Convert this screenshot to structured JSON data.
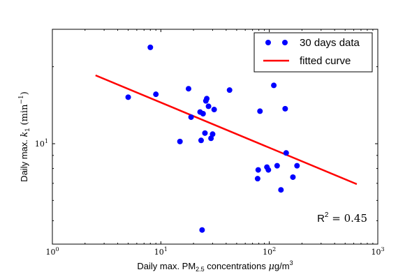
{
  "chart_data": {
    "type": "scatter",
    "x_scale": "log",
    "y_scale": "log",
    "xlim": [
      1,
      1000
    ],
    "ylim": [
      4.05,
      28.0
    ],
    "xticks": [
      {
        "value": 1,
        "base": "10",
        "exp": "0"
      },
      {
        "value": 10,
        "base": "10",
        "exp": "1"
      },
      {
        "value": 100,
        "base": "10",
        "exp": "2"
      },
      {
        "value": 1000,
        "base": "10",
        "exp": "3"
      }
    ],
    "yticks": [
      {
        "value": 10,
        "base": "10",
        "exp": "1"
      }
    ],
    "xlabel": {
      "pre": "Daily max. PM",
      "sub": "2.5",
      "mid": " concentrations ",
      "mu": "μ",
      "unit": "g/m",
      "sup": "3"
    },
    "ylabel": {
      "pre": "Daily max. ",
      "k": "k",
      "ksub": "1",
      "unit_open": " (min",
      "sup": "−1",
      "unit_close": ")"
    },
    "annotation": {
      "pre": "R",
      "sup": "2",
      "post": " = 0.45"
    },
    "grid": false,
    "legend_position": "top-right",
    "series": [
      {
        "name": "30 days data",
        "kind": "scatter",
        "color": "#0000ff",
        "points": [
          [
            5.0,
            15.2
          ],
          [
            8.0,
            23.8
          ],
          [
            9.0,
            15.6
          ],
          [
            15.0,
            10.2
          ],
          [
            18.0,
            16.4
          ],
          [
            19.0,
            12.7
          ],
          [
            23.0,
            13.3
          ],
          [
            23.5,
            10.3
          ],
          [
            24.0,
            4.6
          ],
          [
            24.5,
            13.1
          ],
          [
            25.5,
            11.0
          ],
          [
            26.0,
            14.7
          ],
          [
            26.5,
            15.0
          ],
          [
            27.5,
            14.0
          ],
          [
            29.0,
            10.5
          ],
          [
            30.0,
            10.9
          ],
          [
            31.0,
            13.6
          ],
          [
            43.0,
            16.2
          ],
          [
            78.0,
            7.3
          ],
          [
            79.0,
            7.9
          ],
          [
            82.0,
            13.4
          ],
          [
            95.0,
            8.1
          ],
          [
            98.0,
            7.9
          ],
          [
            110.0,
            16.9
          ],
          [
            118.0,
            8.2
          ],
          [
            128.0,
            6.6
          ],
          [
            140.0,
            13.7
          ],
          [
            143.0,
            9.2
          ],
          [
            165.0,
            7.4
          ],
          [
            180.0,
            8.2
          ]
        ]
      },
      {
        "name": "fitted curve",
        "kind": "line",
        "color": "#ff0000",
        "points": [
          [
            2.5,
            18.5
          ],
          [
            640.0,
            6.95
          ]
        ]
      }
    ]
  }
}
